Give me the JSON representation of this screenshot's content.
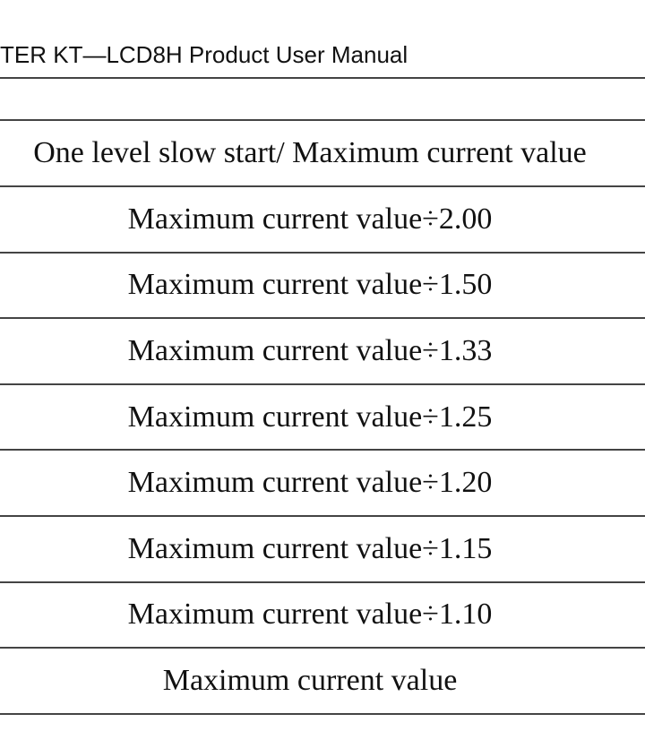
{
  "header": {
    "title": "TER KT—LCD8H Product User Manual"
  },
  "table": {
    "header": "One level slow start/ Maximum current value",
    "rows": [
      "Maximum current value÷2.00",
      "Maximum current value÷1.50",
      "Maximum current value÷1.33",
      "Maximum current value÷1.25",
      "Maximum current value÷1.20",
      "Maximum current value÷1.15",
      "Maximum current value÷1.10",
      "Maximum current value"
    ]
  }
}
